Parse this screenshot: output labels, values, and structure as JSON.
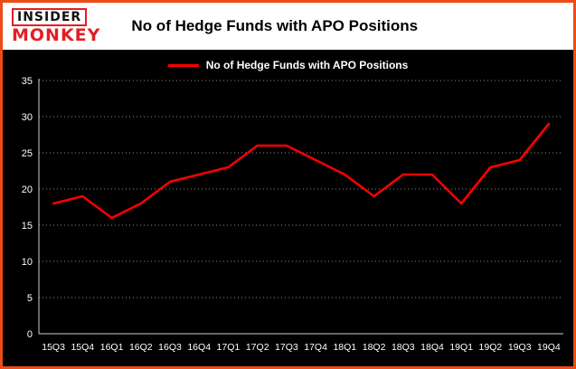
{
  "header": {
    "logo_top": "INSIDER",
    "logo_bottom": "MONKEY",
    "title": "No of Hedge Funds with APO Positions"
  },
  "legend": {
    "label": "No of Hedge Funds with APO Positions"
  },
  "chart_data": {
    "type": "line",
    "title": "No of Hedge Funds with APO Positions",
    "categories": [
      "15Q3",
      "15Q4",
      "16Q1",
      "16Q2",
      "16Q3",
      "16Q4",
      "17Q1",
      "17Q2",
      "17Q3",
      "17Q4",
      "18Q1",
      "18Q2",
      "18Q3",
      "18Q4",
      "19Q1",
      "19Q2",
      "19Q3",
      "19Q4"
    ],
    "values": [
      18,
      19,
      16,
      18,
      21,
      22,
      23,
      26,
      26,
      24,
      22,
      19,
      22,
      22,
      18,
      23,
      24,
      29
    ],
    "xlabel": "",
    "ylabel": "",
    "ylim": [
      0,
      35
    ],
    "yticks": [
      0,
      5,
      10,
      15,
      20,
      25,
      30,
      35
    ],
    "grid": "horizontal-dotted",
    "legend_position": "top-center",
    "line_color": "#ff0000",
    "plot_background": "#000000"
  },
  "colors": {
    "frame_border": "#ed4c16",
    "header_background": "#ffffff",
    "chart_background": "#000000",
    "line": "#ff0000",
    "axis": "#cfcfcf",
    "gridline": "#8a8a8a",
    "tick_text": "#ffffff",
    "logo_red": "#e31e24",
    "title_text": "#000000"
  }
}
